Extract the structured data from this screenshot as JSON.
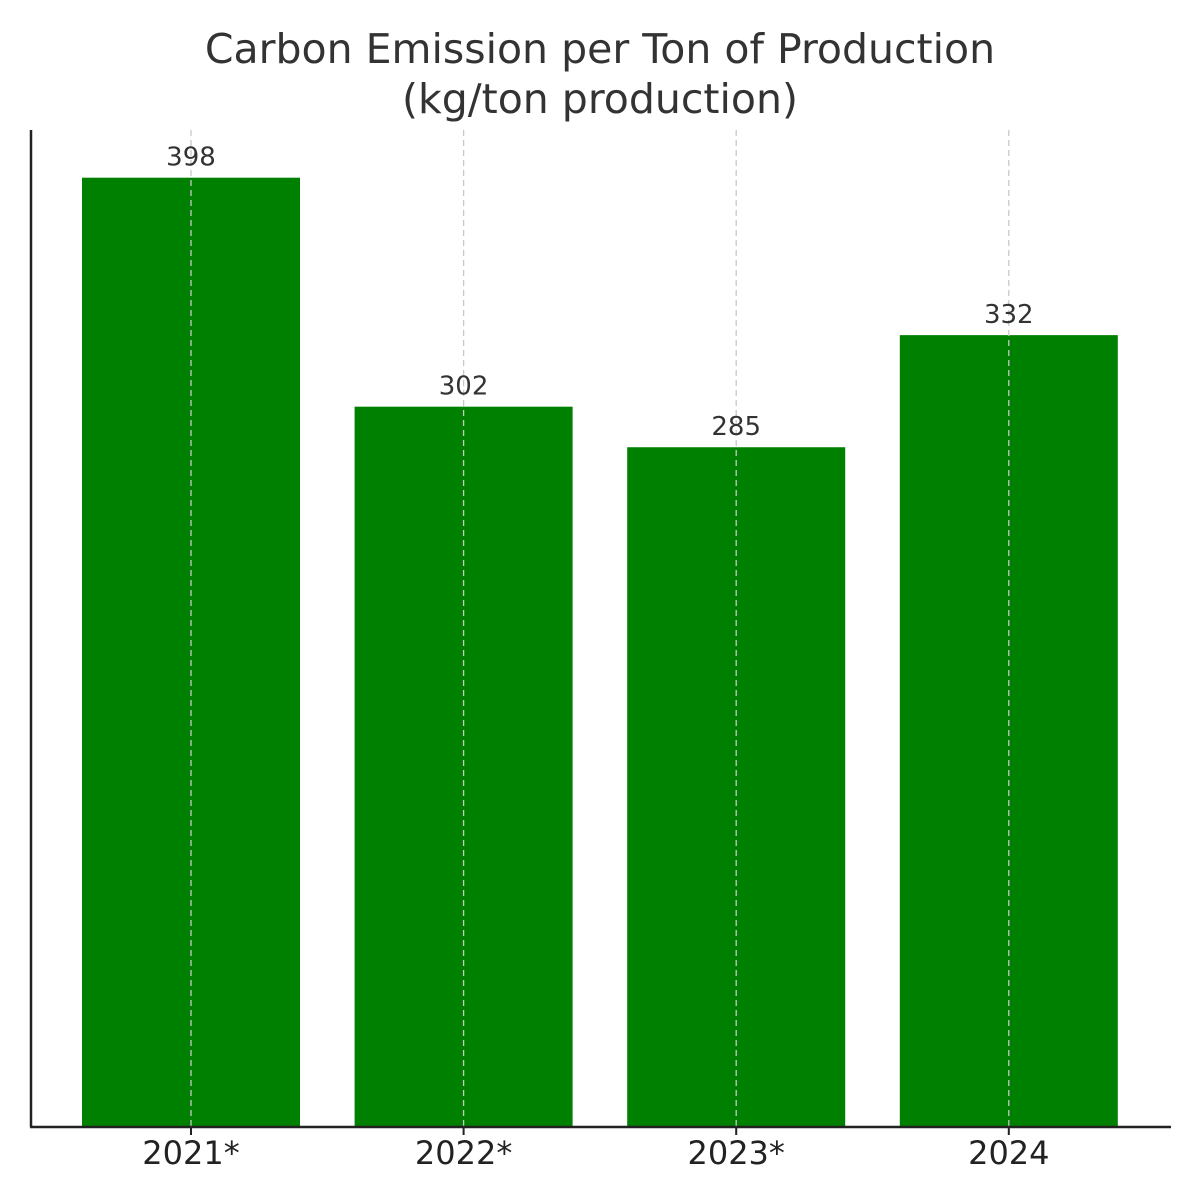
{
  "chart_data": {
    "type": "bar",
    "title": "Carbon Emission per Ton of Production",
    "subtitle": "(kg/ton production)",
    "categories": [
      "2021*",
      "2022*",
      "2023*",
      "2024"
    ],
    "values": [
      398,
      302,
      285,
      332
    ],
    "data_labels": [
      "398",
      "302",
      "285",
      "332"
    ],
    "xlabel": "",
    "ylabel": "",
    "ylim": [
      0,
      418
    ],
    "grid": "vertical dashed",
    "bar_color": "#008000",
    "grid_color": "#c8c8c8",
    "axis_color": "#222222"
  }
}
